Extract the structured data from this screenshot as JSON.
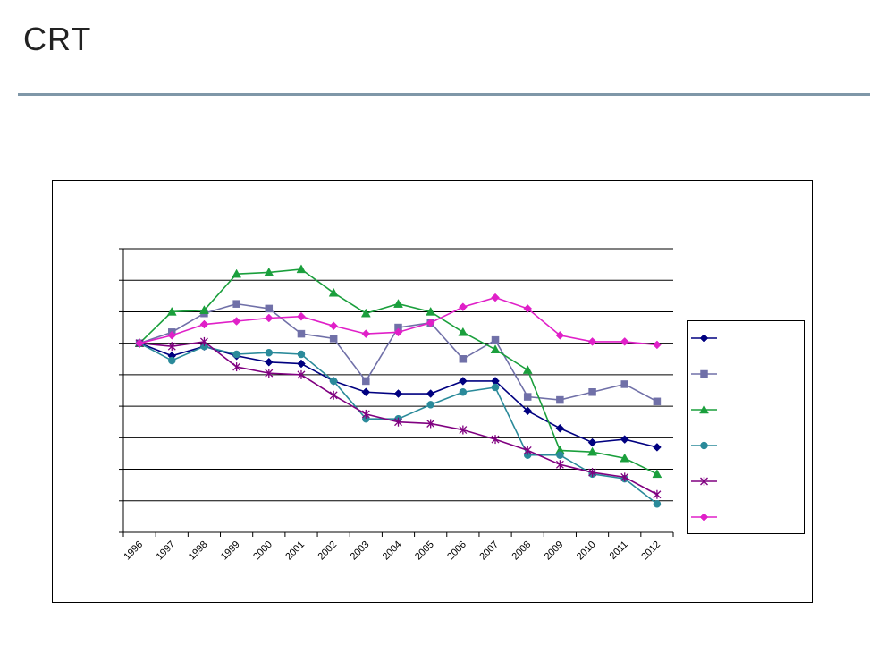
{
  "brand": {
    "logo_text": "CRT"
  },
  "chart_data": {
    "type": "line",
    "title": "",
    "xlabel": "",
    "ylabel": "",
    "grid": true,
    "legend_position": "right",
    "categories": [
      "1996",
      "1997",
      "1998",
      "1999",
      "2000",
      "2001",
      "2002",
      "2003",
      "2004",
      "2005",
      "2006",
      "2007",
      "2008",
      "2009",
      "2010",
      "2011",
      "2012"
    ],
    "ylim": [
      0,
      9
    ],
    "series": [
      {
        "marker": "diamond",
        "color": "#000080",
        "values": [
          6.0,
          5.6,
          5.9,
          5.6,
          5.4,
          5.35,
          4.8,
          4.45,
          4.4,
          4.4,
          4.8,
          4.8,
          3.85,
          3.3,
          2.85,
          2.95,
          2.7
        ]
      },
      {
        "marker": "square",
        "color": "#7070a8",
        "values": [
          6.0,
          6.35,
          6.95,
          7.25,
          7.1,
          6.3,
          6.15,
          4.8,
          6.5,
          6.65,
          5.5,
          6.1,
          4.3,
          4.2,
          4.45,
          4.7,
          4.15
        ]
      },
      {
        "marker": "triangle",
        "color": "#1a9f3c",
        "values": [
          6.0,
          7.0,
          7.05,
          8.2,
          8.25,
          8.35,
          7.6,
          6.95,
          7.25,
          7.0,
          6.35,
          5.8,
          5.15,
          2.6,
          2.55,
          2.35,
          1.85
        ]
      },
      {
        "marker": "circle",
        "color": "#2a8a9a",
        "values": [
          6.0,
          5.45,
          5.9,
          5.65,
          5.7,
          5.65,
          4.8,
          3.6,
          3.6,
          4.05,
          4.45,
          4.6,
          2.45,
          2.45,
          1.85,
          1.7,
          0.9
        ]
      },
      {
        "marker": "star",
        "color": "#800080",
        "values": [
          6.0,
          5.9,
          6.05,
          5.25,
          5.05,
          5.0,
          4.35,
          3.75,
          3.5,
          3.45,
          3.25,
          2.95,
          2.6,
          2.15,
          1.9,
          1.75,
          1.2
        ]
      },
      {
        "marker": "diamond",
        "color": "#e020c8",
        "values": [
          6.0,
          6.25,
          6.6,
          6.7,
          6.8,
          6.85,
          6.55,
          6.3,
          6.35,
          6.65,
          7.15,
          7.45,
          7.1,
          6.25,
          6.05,
          6.05,
          5.95
        ]
      }
    ]
  }
}
